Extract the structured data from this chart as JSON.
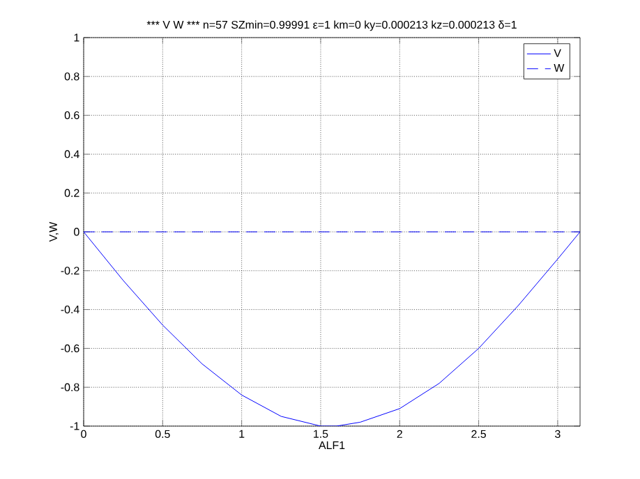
{
  "chart_data": {
    "type": "line",
    "title": "*** V W *** n=57 SZmin=0.99991 ε=1 km=0 ky=0.000213 kz=0.000213 δ=1",
    "xlabel": "ALF1",
    "ylabel": "V,W",
    "xlim": [
      0,
      3.1416
    ],
    "ylim": [
      -1,
      1
    ],
    "xticks": [
      0,
      0.5,
      1,
      1.5,
      2,
      2.5,
      3
    ],
    "yticks": [
      -1,
      -0.8,
      -0.6,
      -0.4,
      -0.2,
      0,
      0.2,
      0.4,
      0.6,
      0.8,
      1
    ],
    "grid": true,
    "legend": "top right",
    "marker": "none",
    "series": [
      {
        "name": "V",
        "color": "#0000ff",
        "line_style": "solid",
        "x": [
          0,
          0.25,
          0.5,
          0.75,
          1,
          1.25,
          1.5,
          1.6,
          1.75,
          2,
          2.25,
          2.5,
          2.75,
          3,
          3.1416
        ],
        "values": [
          0,
          -0.25,
          -0.48,
          -0.68,
          -0.84,
          -0.95,
          -1,
          -1,
          -0.98,
          -0.91,
          -0.78,
          -0.6,
          -0.38,
          -0.14,
          0
        ]
      },
      {
        "name": "W",
        "color": "#0000ff",
        "line_style": "dashed",
        "x": [
          0,
          3.1416
        ],
        "values": [
          0,
          0
        ]
      }
    ]
  }
}
